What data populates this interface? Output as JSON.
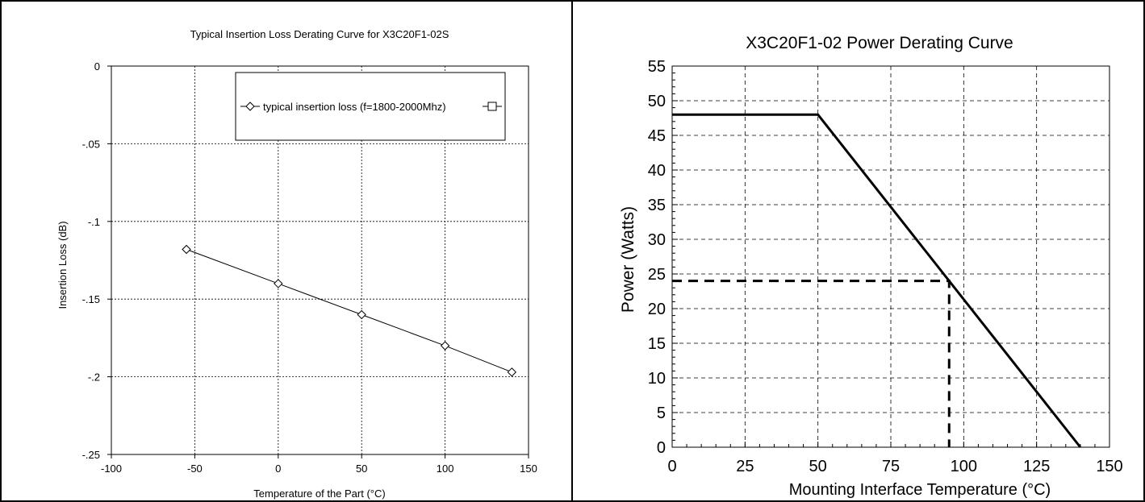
{
  "chart_data": [
    {
      "type": "line",
      "title": "Typical Insertion Loss Derating Curve for X3C20F1-02S",
      "xlabel": "Temperature of the Part (°C)",
      "ylabel": "Insertion Loss (dB)",
      "xlim": [
        -100,
        150
      ],
      "ylim": [
        -0.25,
        0
      ],
      "xticks": [
        -100,
        -50,
        0,
        50,
        100,
        150
      ],
      "yticks": [
        0,
        -0.05,
        -0.1,
        -0.15,
        -0.2,
        -0.25
      ],
      "grid": true,
      "legend_position": "top-right",
      "series": [
        {
          "name": "typical insertion loss (f=1800-2000Mhz)",
          "marker": "diamond",
          "x": [
            -55,
            0,
            50,
            100,
            140
          ],
          "y": [
            -0.118,
            -0.14,
            -0.16,
            -0.18,
            -0.197
          ]
        },
        {
          "name": "",
          "marker": "square",
          "x": [],
          "y": []
        }
      ]
    },
    {
      "type": "line",
      "title": "X3C20F1-02 Power Derating Curve",
      "xlabel": "Mounting Interface Temperature (°C)",
      "ylabel": "Power (Watts)",
      "xlim": [
        0,
        150
      ],
      "ylim": [
        0,
        55
      ],
      "xticks": [
        0,
        25,
        50,
        75,
        100,
        125,
        150
      ],
      "yticks": [
        0,
        5,
        10,
        15,
        20,
        25,
        30,
        35,
        40,
        45,
        50,
        55
      ],
      "grid": true,
      "series": [
        {
          "style": "solid",
          "x": [
            0,
            50,
            140
          ],
          "y": [
            48,
            48,
            0
          ]
        },
        {
          "style": "dashed",
          "x": [
            0,
            95,
            95
          ],
          "y": [
            24,
            24,
            0
          ]
        }
      ]
    }
  ]
}
